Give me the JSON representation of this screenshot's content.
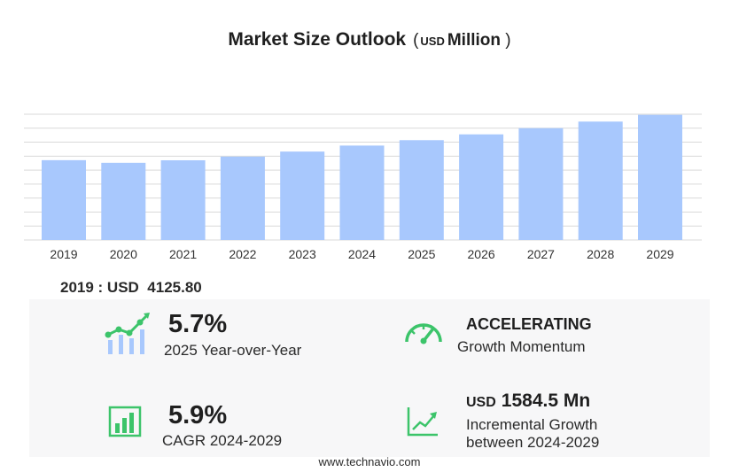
{
  "title": {
    "main": "Market Size Outlook",
    "currency": "USD",
    "unit": "Million"
  },
  "chart_data": {
    "type": "bar",
    "categories": [
      "2019",
      "2020",
      "2021",
      "2022",
      "2023",
      "2024",
      "2025",
      "2026",
      "2027",
      "2028",
      "2029"
    ],
    "values": [
      4125.8,
      3990,
      4120,
      4310,
      4570,
      4880,
      5160,
      5460,
      5780,
      6120,
      6470
    ],
    "ylim": [
      0,
      6500
    ],
    "grid": true,
    "bar_color": "#a8c8fd",
    "grid_color": "#d9d9d9"
  },
  "base_value": {
    "label": "2019 : USD",
    "value": "4125.80"
  },
  "kpis": {
    "yoy": {
      "value": "5.7%",
      "label": "2025 Year-over-Year",
      "icon": "growth-chart-icon"
    },
    "momentum": {
      "value": "ACCELERATING",
      "label": "Growth Momentum",
      "icon": "speedometer-icon"
    },
    "cagr": {
      "value": "5.9%",
      "label": "CAGR 2024-2029",
      "icon": "bar-chart-icon"
    },
    "incremental": {
      "currency": "USD",
      "value": "1584.5 Mn",
      "label_line1": "Incremental Growth",
      "label_line2": "between 2024-2029",
      "icon": "trend-line-icon"
    }
  },
  "colors": {
    "accent_green": "#3cc46a",
    "icon_blue": "#a8c8fd"
  },
  "footer": "www.technavio.com"
}
